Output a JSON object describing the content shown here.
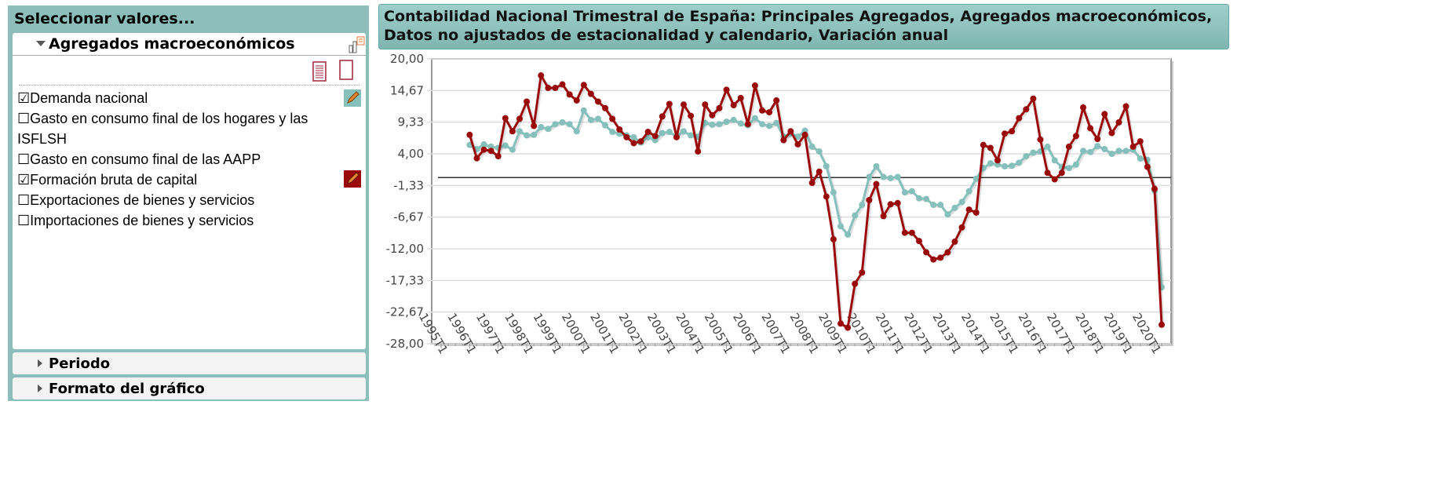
{
  "left_panel": {
    "title": "Seleccionar valores...",
    "section": "Agregados macroeconómicos",
    "items": [
      {
        "label": "Demanda nacional",
        "checked": true
      },
      {
        "label": "Gasto en consumo final de los hogares y las ISFLSH",
        "checked": false
      },
      {
        "label": "Gasto en consumo final de las AAPP",
        "checked": false
      },
      {
        "label": "Formación bruta de capital",
        "checked": true
      },
      {
        "label": "Exportaciones de bienes y servicios",
        "checked": false
      },
      {
        "label": "Importaciones de bienes y servicios",
        "checked": false
      }
    ],
    "check_on": "☑",
    "check_off": "☐",
    "collapsed": [
      "Periodo",
      "Formato del gráfico"
    ]
  },
  "colors": {
    "teal": "#86c0bb",
    "red": "#9b0a0a"
  },
  "chart_data": {
    "type": "line",
    "title": "Contabilidad Nacional Trimestral de España: Principales Agregados, Agregados macroeconómicos, Datos no ajustados de estacionalidad y calendario, Variación anual",
    "ylim": [
      -28,
      20
    ],
    "yticks": [
      "20,00",
      "14,67",
      "9,33",
      "4,00",
      "-1,33",
      "-6,67",
      "-12,00",
      "-17,33",
      "-22,67",
      "-28,00"
    ],
    "xticks": [
      "1995T1",
      "1996T1",
      "1997T1",
      "1998T1",
      "1999T1",
      "2000T1",
      "2001T1",
      "2002T1",
      "2003T1",
      "2004T1",
      "2005T1",
      "2006T1",
      "2007T1",
      "2008T1",
      "2009T1",
      "2010T1",
      "2011T1",
      "2012T1",
      "2013T1",
      "2014T1",
      "2015T1",
      "2016T1",
      "2017T1",
      "2018T1",
      "2019T1",
      "2020T1"
    ],
    "series_start": "1996T1",
    "series": [
      {
        "name": "Demanda nacional",
        "color": "#86c0bb",
        "values": [
          5.5,
          4.8,
          5.6,
          5.2,
          5.0,
          5.4,
          4.7,
          7.8,
          7.1,
          7.2,
          8.5,
          8.2,
          9.0,
          9.3,
          9.0,
          7.8,
          11.3,
          9.7,
          9.9,
          8.8,
          7.7,
          7.4,
          7.1,
          6.8,
          5.9,
          6.8,
          6.3,
          7.5,
          7.7,
          6.9,
          7.8,
          7.1,
          6.9,
          9.2,
          8.9,
          9.0,
          9.4,
          9.7,
          9.1,
          8.8,
          10.0,
          9.0,
          8.7,
          9.2,
          6.9,
          7.4,
          6.9,
          7.9,
          5.2,
          4.4,
          1.9,
          -2.5,
          -8.2,
          -9.6,
          -6.4,
          -4.6,
          0.1,
          1.9,
          0.1,
          -0.1,
          0.1,
          -2.5,
          -2.3,
          -3.5,
          -3.6,
          -4.6,
          -4.6,
          -6.2,
          -5.1,
          -4.1,
          -2.3,
          -0.2,
          1.6,
          2.4,
          2.2,
          1.9,
          2.0,
          2.5,
          3.6,
          4.2,
          4.4,
          5.2,
          2.9,
          1.8,
          1.6,
          2.2,
          4.5,
          4.3,
          5.3,
          4.8,
          4.0,
          4.5,
          4.5,
          4.7,
          3.2,
          3.0,
          -2.2,
          -18.5
        ]
      },
      {
        "name": "Formación bruta de capital",
        "color": "#9b0a0a",
        "values": [
          7.2,
          3.25,
          4.7,
          4.5,
          3.6,
          10.0,
          7.8,
          9.9,
          12.8,
          8.7,
          17.2,
          15.1,
          15.1,
          15.7,
          14.0,
          13.0,
          15.6,
          14.1,
          12.8,
          11.7,
          9.9,
          8.1,
          6.8,
          5.8,
          6.1,
          7.7,
          7.0,
          10.3,
          12.4,
          6.8,
          12.3,
          10.4,
          4.4,
          12.3,
          10.5,
          11.7,
          14.8,
          12.2,
          13.4,
          9.0,
          15.5,
          11.3,
          11.0,
          13.0,
          6.3,
          7.8,
          5.6,
          7.2,
          -0.9,
          1.0,
          -3.2,
          -10.4,
          -24.6,
          -25.3,
          -17.9,
          -16.0,
          -3.8,
          -1.1,
          -6.5,
          -4.5,
          -4.3,
          -9.3,
          -9.3,
          -10.7,
          -12.6,
          -13.8,
          -13.5,
          -12.6,
          -10.8,
          -8.4,
          -5.4,
          -5.9,
          5.5,
          5.0,
          2.9,
          7.4,
          7.8,
          10.0,
          11.5,
          13.3,
          6.4,
          0.8,
          -0.3,
          0.8,
          5.2,
          7.0,
          11.8,
          8.3,
          6.5,
          10.7,
          7.5,
          9.3,
          12.0,
          5.2,
          6.1,
          1.8,
          -1.9,
          -24.8
        ]
      }
    ],
    "reference_line": 0
  }
}
